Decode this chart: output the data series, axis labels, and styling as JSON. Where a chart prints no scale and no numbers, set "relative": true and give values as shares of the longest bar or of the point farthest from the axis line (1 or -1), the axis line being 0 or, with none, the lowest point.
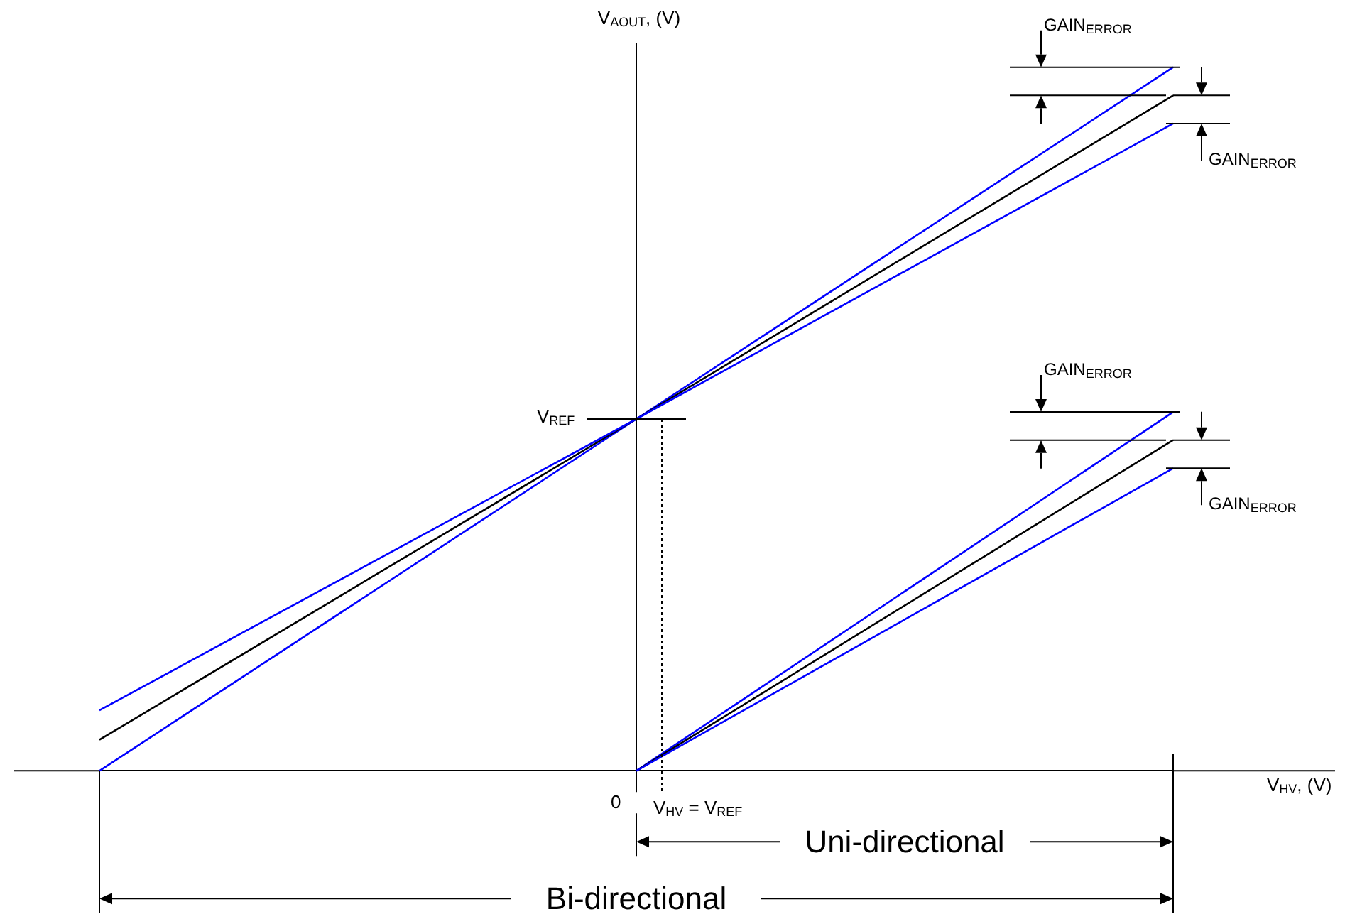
{
  "chart_data": {
    "type": "line",
    "relative": true,
    "ylabel": "V$_{AOUT}$, (V)",
    "categories": [
      null,
      null,
      null
    ],
    "series": [
      {
        "color": "#0000ff",
        "values": [
          0,
          0.5,
          1
        ]
      },
      {
        "color": "#000000",
        "values": [
          0.044,
          0.5,
          0.96
        ]
      },
      {
        "color": "#0000ff",
        "values": [
          0.086,
          0.5,
          0.92
        ]
      },
      {
        "color": "#0000ff",
        "values": [
          null,
          0,
          0.51
        ]
      },
      {
        "color": "#000000",
        "values": [
          null,
          0,
          0.47
        ]
      },
      {
        "color": "#0000ff",
        "values": [
          null,
          0,
          0.43
        ]
      }
    ],
    "annotations": [
      "GAIN$_{ERROR}$",
      "GAIN$_{ERROR}$",
      "GAIN$_{ERROR}$",
      "GAIN$_{ERROR}$",
      "V$_{REF}$",
      "0",
      "V$_{HV}$ = V$_{REF}$",
      "Uni-directional",
      "Bi-directional",
      "V$_{HV}$, (V)"
    ],
    "grid": false,
    "marker": "none"
  }
}
